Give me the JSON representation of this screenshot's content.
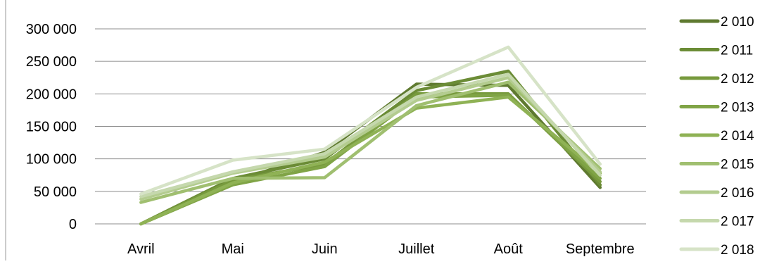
{
  "chart_data": {
    "type": "line",
    "title": "",
    "xlabel": "",
    "ylabel": "",
    "categories": [
      "Avril",
      "Mai",
      "Juin",
      "Juillet",
      "Août",
      "Septembre"
    ],
    "ylim": [
      0,
      300000
    ],
    "yticks": [
      0,
      50000,
      100000,
      150000,
      200000,
      250000,
      300000
    ],
    "ytick_labels": [
      "0",
      "50 000",
      "100 000",
      "150 000",
      "200 000",
      "250 000",
      "300 000"
    ],
    "grid": true,
    "legend_position": "right",
    "series": [
      {
        "name": "2 010",
        "color": "#5f7a30",
        "values": [
          0,
          65000,
          110000,
          215000,
          213000,
          56000
        ]
      },
      {
        "name": "2 011",
        "color": "#6b8c36",
        "values": [
          0,
          70000,
          100000,
          205000,
          235000,
          60000
        ]
      },
      {
        "name": "2 012",
        "color": "#779a3d",
        "values": [
          0,
          67000,
          92000,
          200000,
          200000,
          65000
        ]
      },
      {
        "name": "2 013",
        "color": "#80a446",
        "values": [
          0,
          60000,
          88000,
          195000,
          198000,
          70000
        ]
      },
      {
        "name": "2 014",
        "color": "#8fb255",
        "values": [
          0,
          63000,
          95000,
          178000,
          195000,
          78000
        ]
      },
      {
        "name": "2 015",
        "color": "#a0bf70",
        "values": [
          33000,
          70000,
          71000,
          182000,
          218000,
          85000
        ]
      },
      {
        "name": "2 016",
        "color": "#b3cc8f",
        "values": [
          38000,
          78000,
          103000,
          190000,
          225000,
          80000
        ]
      },
      {
        "name": "2 017",
        "color": "#c5d8ad",
        "values": [
          42000,
          80000,
          108000,
          195000,
          230000,
          75000
        ]
      },
      {
        "name": "2 018",
        "color": "#d6e3c7",
        "values": [
          46000,
          98000,
          115000,
          210000,
          272000,
          92000
        ]
      }
    ]
  }
}
